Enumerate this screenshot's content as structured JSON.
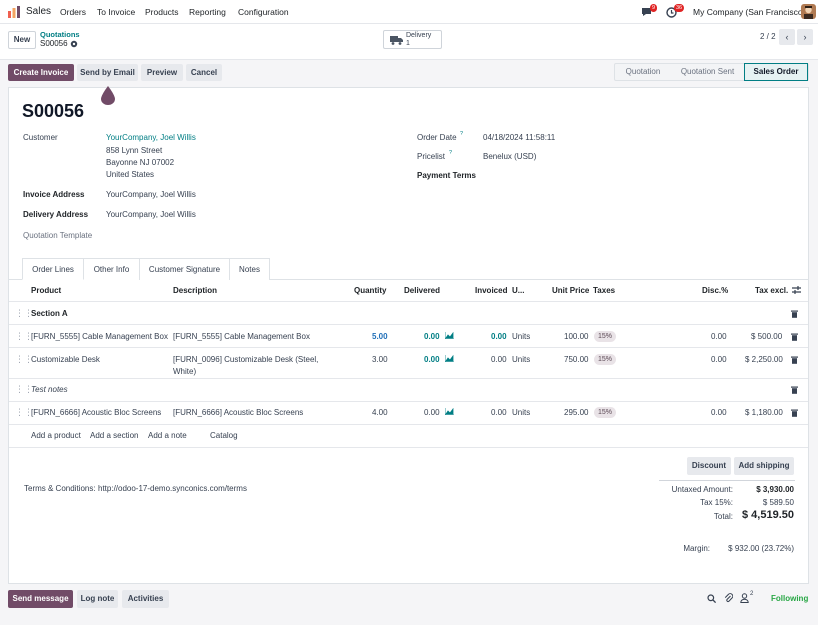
{
  "navbar": {
    "app_name": "Sales",
    "menu": [
      "Orders",
      "To Invoice",
      "Products",
      "Reporting",
      "Configuration"
    ],
    "messages_count": "9",
    "activities_count": "36",
    "company": "My Company (San Francisco)"
  },
  "control": {
    "new_label": "New",
    "breadcrumb_parent": "Quotations",
    "breadcrumb_current": "S00056",
    "delivery_label": "Delivery",
    "delivery_count": "1",
    "pager": "2 / 2"
  },
  "actions": {
    "create_invoice": "Create Invoice",
    "send_email": "Send by Email",
    "preview": "Preview",
    "cancel": "Cancel"
  },
  "status_bar": {
    "steps": [
      "Quotation",
      "Quotation Sent",
      "Sales Order"
    ],
    "active": "Sales Order"
  },
  "form": {
    "name": "S00056",
    "customer_label": "Customer",
    "customer_name": "YourCompany, Joel Willis",
    "customer_address": [
      "858 Lynn Street",
      "Bayonne NJ 07002",
      "United States"
    ],
    "invoice_address_label": "Invoice Address",
    "invoice_address": "YourCompany, Joel Willis",
    "delivery_address_label": "Delivery Address",
    "delivery_address": "YourCompany, Joel Willis",
    "quotation_template_label": "Quotation Template",
    "order_date_label": "Order Date",
    "order_date": "04/18/2024 11:58:11",
    "pricelist_label": "Pricelist",
    "pricelist": "Benelux (USD)",
    "payment_terms_label": "Payment Terms",
    "help_mark": "?"
  },
  "tabs": [
    "Order Lines",
    "Other Info",
    "Customer Signature",
    "Notes"
  ],
  "table": {
    "headers": {
      "product": "Product",
      "description": "Description",
      "quantity": "Quantity",
      "delivered": "Delivered",
      "invoiced": "Invoiced",
      "uom": "U...",
      "unit_price": "Unit Price",
      "taxes": "Taxes",
      "disc": "Disc.%",
      "tax_excl": "Tax excl."
    },
    "section": "Section A",
    "rows": [
      {
        "product": "[FURN_5555] Cable Management Box",
        "description": "[FURN_5555] Cable Management Box",
        "quantity": "5.00",
        "delivered": "0.00",
        "invoiced": "0.00",
        "uom": "Units",
        "unit_price": "100.00",
        "tax": "15%",
        "disc": "0.00",
        "subtotal": "$ 500.00"
      },
      {
        "product": "Customizable Desk",
        "description": "[FURN_0096] Customizable Desk (Steel,",
        "description2": "White)",
        "quantity": "3.00",
        "delivered": "0.00",
        "invoiced": "0.00",
        "uom": "Units",
        "unit_price": "750.00",
        "tax": "15%",
        "disc": "0.00",
        "subtotal": "$ 2,250.00"
      },
      {
        "product": "[FURN_6666] Acoustic Bloc Screens",
        "description": "[FURN_6666] Acoustic Bloc Screens",
        "quantity": "4.00",
        "delivered": "0.00",
        "invoiced": "0.00",
        "uom": "Units",
        "unit_price": "295.00",
        "tax": "15%",
        "disc": "0.00",
        "subtotal": "$ 1,180.00"
      }
    ],
    "note": "Test notes",
    "add_product": "Add a product",
    "add_section": "Add a section",
    "add_note": "Add a note",
    "catalog": "Catalog"
  },
  "footer": {
    "discount": "Discount",
    "add_shipping": "Add shipping",
    "terms_label": "Terms & Conditions:",
    "terms_link": "http://odoo-17-demo.synconics.com/terms",
    "untaxed_label": "Untaxed Amount:",
    "untaxed": "$ 3,930.00",
    "tax_label": "Tax 15%:",
    "tax": "$ 589.50",
    "total_label": "Total:",
    "total": "$ 4,519.50",
    "margin_label": "Margin:",
    "margin": "$ 932.00 (23.72%)"
  },
  "chatter": {
    "send_message": "Send message",
    "log_note": "Log note",
    "activities": "Activities",
    "followers_count": "2",
    "following": "Following"
  },
  "colors": {
    "brand": "#714B67",
    "link": "#017e84",
    "active_step_border": "#017e84"
  }
}
